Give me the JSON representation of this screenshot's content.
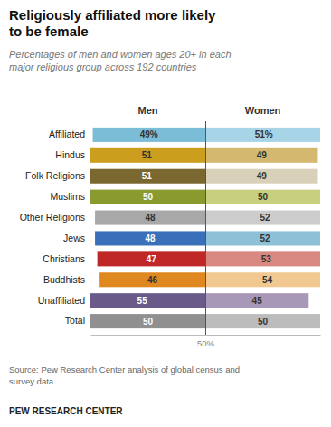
{
  "chart_data": {
    "type": "bar",
    "orientation": "horizontal",
    "stacked": true,
    "data_labels": true,
    "tick_labels": "y",
    "grid": false,
    "title": "Religiously affiliated more likely\nto be female",
    "subtitle": "Percentages of men and women ages 20+ in each\nmajor religious group across 192 countries",
    "source": "Source: Pew Research Center analysis of global census and\nsurvey data",
    "footer": "PEW RESEARCH CENTER",
    "categories": [
      "Affiliated",
      "Hindus",
      "Folk Religions",
      "Muslims",
      "Other Religions",
      "Jews",
      "Christians",
      "Buddhists",
      "Unaffiliated",
      "Total"
    ],
    "xlim": [
      0,
      100
    ],
    "xticks": [
      {
        "value": 50,
        "label": "50%"
      }
    ],
    "series": [
      {
        "name": "Men",
        "values": [
          49,
          51,
          51,
          50,
          48,
          48,
          47,
          46,
          55,
          50
        ],
        "value_labels": [
          "49%",
          "51",
          "51",
          "50",
          "48",
          "48",
          "47",
          "46",
          "55",
          "50"
        ],
        "colors": [
          "#7bbdd6",
          "#cc9e1e",
          "#7a6830",
          "#8a9a2e",
          "#a8a8a8",
          "#3a6fba",
          "#c02828",
          "#e08820",
          "#6a5a8a",
          "#909090"
        ]
      },
      {
        "name": "Women",
        "values": [
          51,
          49,
          49,
          50,
          52,
          52,
          53,
          54,
          45,
          50
        ],
        "value_labels": [
          "51%",
          "49",
          "49",
          "50",
          "52",
          "52",
          "53",
          "54",
          "45",
          "50"
        ],
        "colors": [
          "#a8d4e8",
          "#d4b870",
          "#d8d0b8",
          "#c8d080",
          "#cccccc",
          "#8ec0d8",
          "#d88880",
          "#f0c890",
          "#a898b8",
          "#bcbcbc"
        ]
      }
    ]
  }
}
